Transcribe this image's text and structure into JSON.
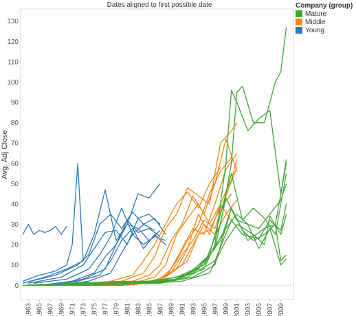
{
  "chart_data": {
    "type": "line",
    "title": "Dates aligned to first possible date",
    "ylabel": "Avg. Adj Close",
    "xlabel": "",
    "ylim": [
      -7,
      136
    ],
    "xlim": [
      1961.6,
      2011.3
    ],
    "y_ticks": [
      0,
      10,
      20,
      30,
      40,
      50,
      60,
      70,
      80,
      90,
      100,
      110,
      120,
      130
    ],
    "x_ticks": [
      1963,
      1965,
      1967,
      1969,
      1971,
      1973,
      1975,
      1977,
      1979,
      1981,
      1983,
      1985,
      1987,
      1989,
      1991,
      1993,
      1995,
      1997,
      1999,
      2001,
      2003,
      2005,
      2007,
      2009
    ],
    "grid": false,
    "legend_position": "top-right",
    "legend": {
      "title": "Company (group)",
      "items": [
        {
          "name": "Mature",
          "color": "#3fa535"
        },
        {
          "name": "Middle",
          "color": "#f58517"
        },
        {
          "name": "Young",
          "color": "#2b78b8"
        }
      ]
    },
    "series": [
      {
        "group": "Young",
        "x": [
          1962,
          1963,
          1964,
          1965,
          1966,
          1967,
          1968,
          1969,
          1970
        ],
        "y": [
          25,
          30,
          25,
          27,
          26,
          27,
          29,
          25,
          29
        ]
      },
      {
        "group": "Young",
        "x": [
          1962,
          1965,
          1968,
          1970,
          1971,
          1972,
          1973
        ],
        "y": [
          2,
          5,
          7,
          10,
          20,
          60,
          12
        ]
      },
      {
        "group": "Young",
        "x": [
          1962,
          1966,
          1970,
          1973,
          1975,
          1977,
          1979,
          1981,
          1983,
          1985,
          1987
        ],
        "y": [
          1,
          4,
          8,
          12,
          25,
          47,
          22,
          30,
          45,
          43,
          50
        ]
      },
      {
        "group": "Young",
        "x": [
          1962,
          1968,
          1972,
          1974,
          1976,
          1978,
          1980,
          1982,
          1984,
          1986,
          1988
        ],
        "y": [
          1,
          5,
          10,
          15,
          30,
          35,
          28,
          36,
          30,
          33,
          25
        ]
      },
      {
        "group": "Young",
        "x": [
          1963,
          1969,
          1973,
          1975,
          1977,
          1979,
          1981,
          1983,
          1985,
          1987
        ],
        "y": [
          1,
          4,
          10,
          18,
          26,
          27,
          20,
          33,
          35,
          30
        ]
      },
      {
        "group": "Young",
        "x": [
          1964,
          1970,
          1974,
          1976,
          1978,
          1980,
          1982,
          1984,
          1986
        ],
        "y": [
          1,
          3,
          8,
          15,
          24,
          38,
          25,
          30,
          27
        ]
      },
      {
        "group": "Young",
        "x": [
          1965,
          1971,
          1975,
          1977,
          1979,
          1981,
          1983,
          1985,
          1987
        ],
        "y": [
          0,
          2,
          6,
          14,
          20,
          30,
          28,
          22,
          27
        ]
      },
      {
        "group": "Young",
        "x": [
          1966,
          1972,
          1976,
          1978,
          1980,
          1982,
          1984,
          1986,
          1988
        ],
        "y": [
          0,
          2,
          5,
          12,
          22,
          28,
          18,
          25,
          20
        ]
      },
      {
        "group": "Young",
        "x": [
          1967,
          1973,
          1977,
          1979,
          1981,
          1983,
          1985,
          1987
        ],
        "y": [
          0,
          3,
          8,
          20,
          32,
          26,
          28,
          24
        ]
      },
      {
        "group": "Young",
        "x": [
          1968,
          1974,
          1978,
          1980,
          1982,
          1984,
          1986,
          1988
        ],
        "y": [
          0,
          2,
          6,
          16,
          25,
          20,
          24,
          22
        ]
      },
      {
        "group": "Middle",
        "x": [
          1973,
          1978,
          1982,
          1984,
          1986,
          1988,
          1990,
          1992,
          1994,
          1996,
          1998
        ],
        "y": [
          0,
          2,
          5,
          12,
          20,
          30,
          40,
          46,
          38,
          50,
          58
        ]
      },
      {
        "group": "Middle",
        "x": [
          1974,
          1980,
          1984,
          1986,
          1988,
          1990,
          1992,
          1994,
          1996,
          1998,
          2000,
          2001
        ],
        "y": [
          0,
          2,
          6,
          14,
          28,
          35,
          48,
          44,
          40,
          70,
          76,
          80
        ]
      },
      {
        "group": "Middle",
        "x": [
          1975,
          1981,
          1985,
          1987,
          1989,
          1991,
          1993,
          1995,
          1997,
          1999,
          2001
        ],
        "y": [
          0,
          1,
          5,
          10,
          22,
          30,
          44,
          35,
          50,
          72,
          56
        ]
      },
      {
        "group": "Middle",
        "x": [
          1976,
          1982,
          1986,
          1988,
          1990,
          1992,
          1994,
          1996,
          1998,
          2000,
          2001
        ],
        "y": [
          0,
          1,
          4,
          10,
          25,
          33,
          40,
          30,
          40,
          52,
          62
        ]
      },
      {
        "group": "Middle",
        "x": [
          1977,
          1983,
          1987,
          1989,
          1991,
          1993,
          1995,
          1997,
          1999,
          2001
        ],
        "y": [
          0,
          1,
          3,
          8,
          18,
          28,
          25,
          40,
          57,
          65
        ]
      },
      {
        "group": "Middle",
        "x": [
          1978,
          1984,
          1988,
          1990,
          1992,
          1994,
          1996,
          1998,
          2000
        ],
        "y": [
          0,
          1,
          4,
          12,
          22,
          30,
          45,
          56,
          63
        ]
      },
      {
        "group": "Middle",
        "x": [
          1979,
          1985,
          1989,
          1991,
          1993,
          1995,
          1997,
          1999,
          2001
        ],
        "y": [
          0,
          1,
          6,
          15,
          22,
          32,
          28,
          44,
          58
        ]
      },
      {
        "group": "Middle",
        "x": [
          1980,
          1986,
          1990,
          1992,
          1994,
          1996,
          1998,
          2000
        ],
        "y": [
          0,
          2,
          8,
          18,
          35,
          25,
          40,
          32
        ]
      },
      {
        "group": "Middle",
        "x": [
          1981,
          1987,
          1991,
          1993,
          1995,
          1997,
          1999,
          2001
        ],
        "y": [
          0,
          3,
          10,
          20,
          30,
          25,
          35,
          42
        ]
      },
      {
        "group": "Middle",
        "x": [
          1982,
          1988,
          1992,
          1994,
          1996,
          1998,
          2000
        ],
        "y": [
          0,
          4,
          12,
          25,
          27,
          38,
          45
        ]
      },
      {
        "group": "Mature",
        "x": [
          1962,
          1970,
          1980,
          1985,
          1990,
          1995,
          1998,
          2000,
          2001,
          2002,
          2004,
          2006,
          2008,
          2009,
          2010
        ],
        "y": [
          0,
          1,
          2,
          2,
          4,
          10,
          30,
          60,
          95,
          98,
          80,
          80,
          100,
          105,
          127
        ]
      },
      {
        "group": "Mature",
        "x": [
          1962,
          1975,
          1985,
          1990,
          1995,
          1997,
          1999,
          2000,
          2001,
          2003,
          2005,
          2007,
          2009,
          2010
        ],
        "y": [
          0,
          1,
          2,
          3,
          8,
          20,
          60,
          96,
          90,
          76,
          82,
          86,
          45,
          62
        ]
      },
      {
        "group": "Mature",
        "x": [
          1962,
          1978,
          1986,
          1992,
          1996,
          1998,
          2000,
          2002,
          2004,
          2006,
          2008,
          2009,
          2010
        ],
        "y": [
          0,
          1,
          2,
          5,
          15,
          35,
          55,
          32,
          38,
          33,
          25,
          40,
          55
        ]
      },
      {
        "group": "Mature",
        "x": [
          1962,
          1980,
          1988,
          1993,
          1997,
          1999,
          2001,
          2003,
          2005,
          2007,
          2009,
          2010
        ],
        "y": [
          0,
          0,
          3,
          6,
          18,
          43,
          32,
          30,
          28,
          35,
          42,
          50
        ]
      },
      {
        "group": "Mature",
        "x": [
          1962,
          1982,
          1989,
          1994,
          1998,
          2000,
          2002,
          2004,
          2006,
          2008,
          2009,
          2010
        ],
        "y": [
          0,
          1,
          2,
          8,
          22,
          38,
          27,
          22,
          25,
          30,
          12,
          15
        ]
      },
      {
        "group": "Mature",
        "x": [
          1962,
          1984,
          1990,
          1995,
          1999,
          2001,
          2003,
          2005,
          2007,
          2009,
          2010
        ],
        "y": [
          0,
          1,
          3,
          10,
          28,
          35,
          30,
          18,
          28,
          10,
          13
        ]
      },
      {
        "group": "Mature",
        "x": [
          1962,
          1985,
          1991,
          1996,
          1999,
          2001,
          2004,
          2006,
          2007,
          2009,
          2010
        ],
        "y": [
          0,
          1,
          2,
          6,
          22,
          30,
          25,
          20,
          34,
          25,
          35
        ]
      },
      {
        "group": "Mature",
        "x": [
          1962,
          1986,
          1992,
          1997,
          2000,
          2002,
          2005,
          2007,
          2009,
          2010
        ],
        "y": [
          0,
          1,
          4,
          12,
          32,
          25,
          23,
          32,
          27,
          40
        ]
      },
      {
        "group": "Mature",
        "x": [
          1962,
          1987,
          1993,
          1997,
          2000,
          2003,
          2006,
          2008,
          2010
        ],
        "y": [
          0,
          1,
          4,
          10,
          38,
          22,
          28,
          30,
          60
        ]
      }
    ]
  }
}
